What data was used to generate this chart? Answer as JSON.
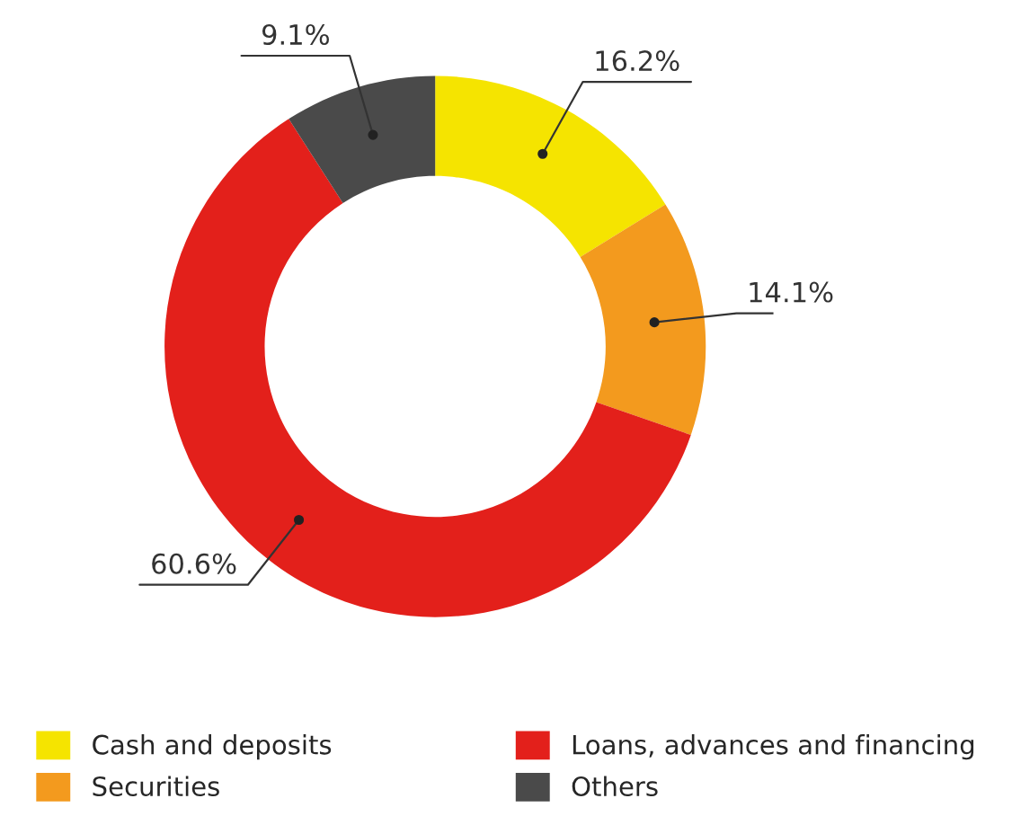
{
  "chart_data": {
    "type": "donut",
    "categories": [
      "Cash and deposits",
      "Securities",
      "Loans, advances and financing",
      "Others"
    ],
    "values": [
      16.2,
      14.1,
      60.6,
      9.1
    ],
    "colors": [
      "#f5e400",
      "#f39a1e",
      "#e3201b",
      "#4a4a4a"
    ],
    "value_labels": [
      "16.2%",
      "14.1%",
      "60.6%",
      "9.1%"
    ],
    "legend": "bottom"
  }
}
